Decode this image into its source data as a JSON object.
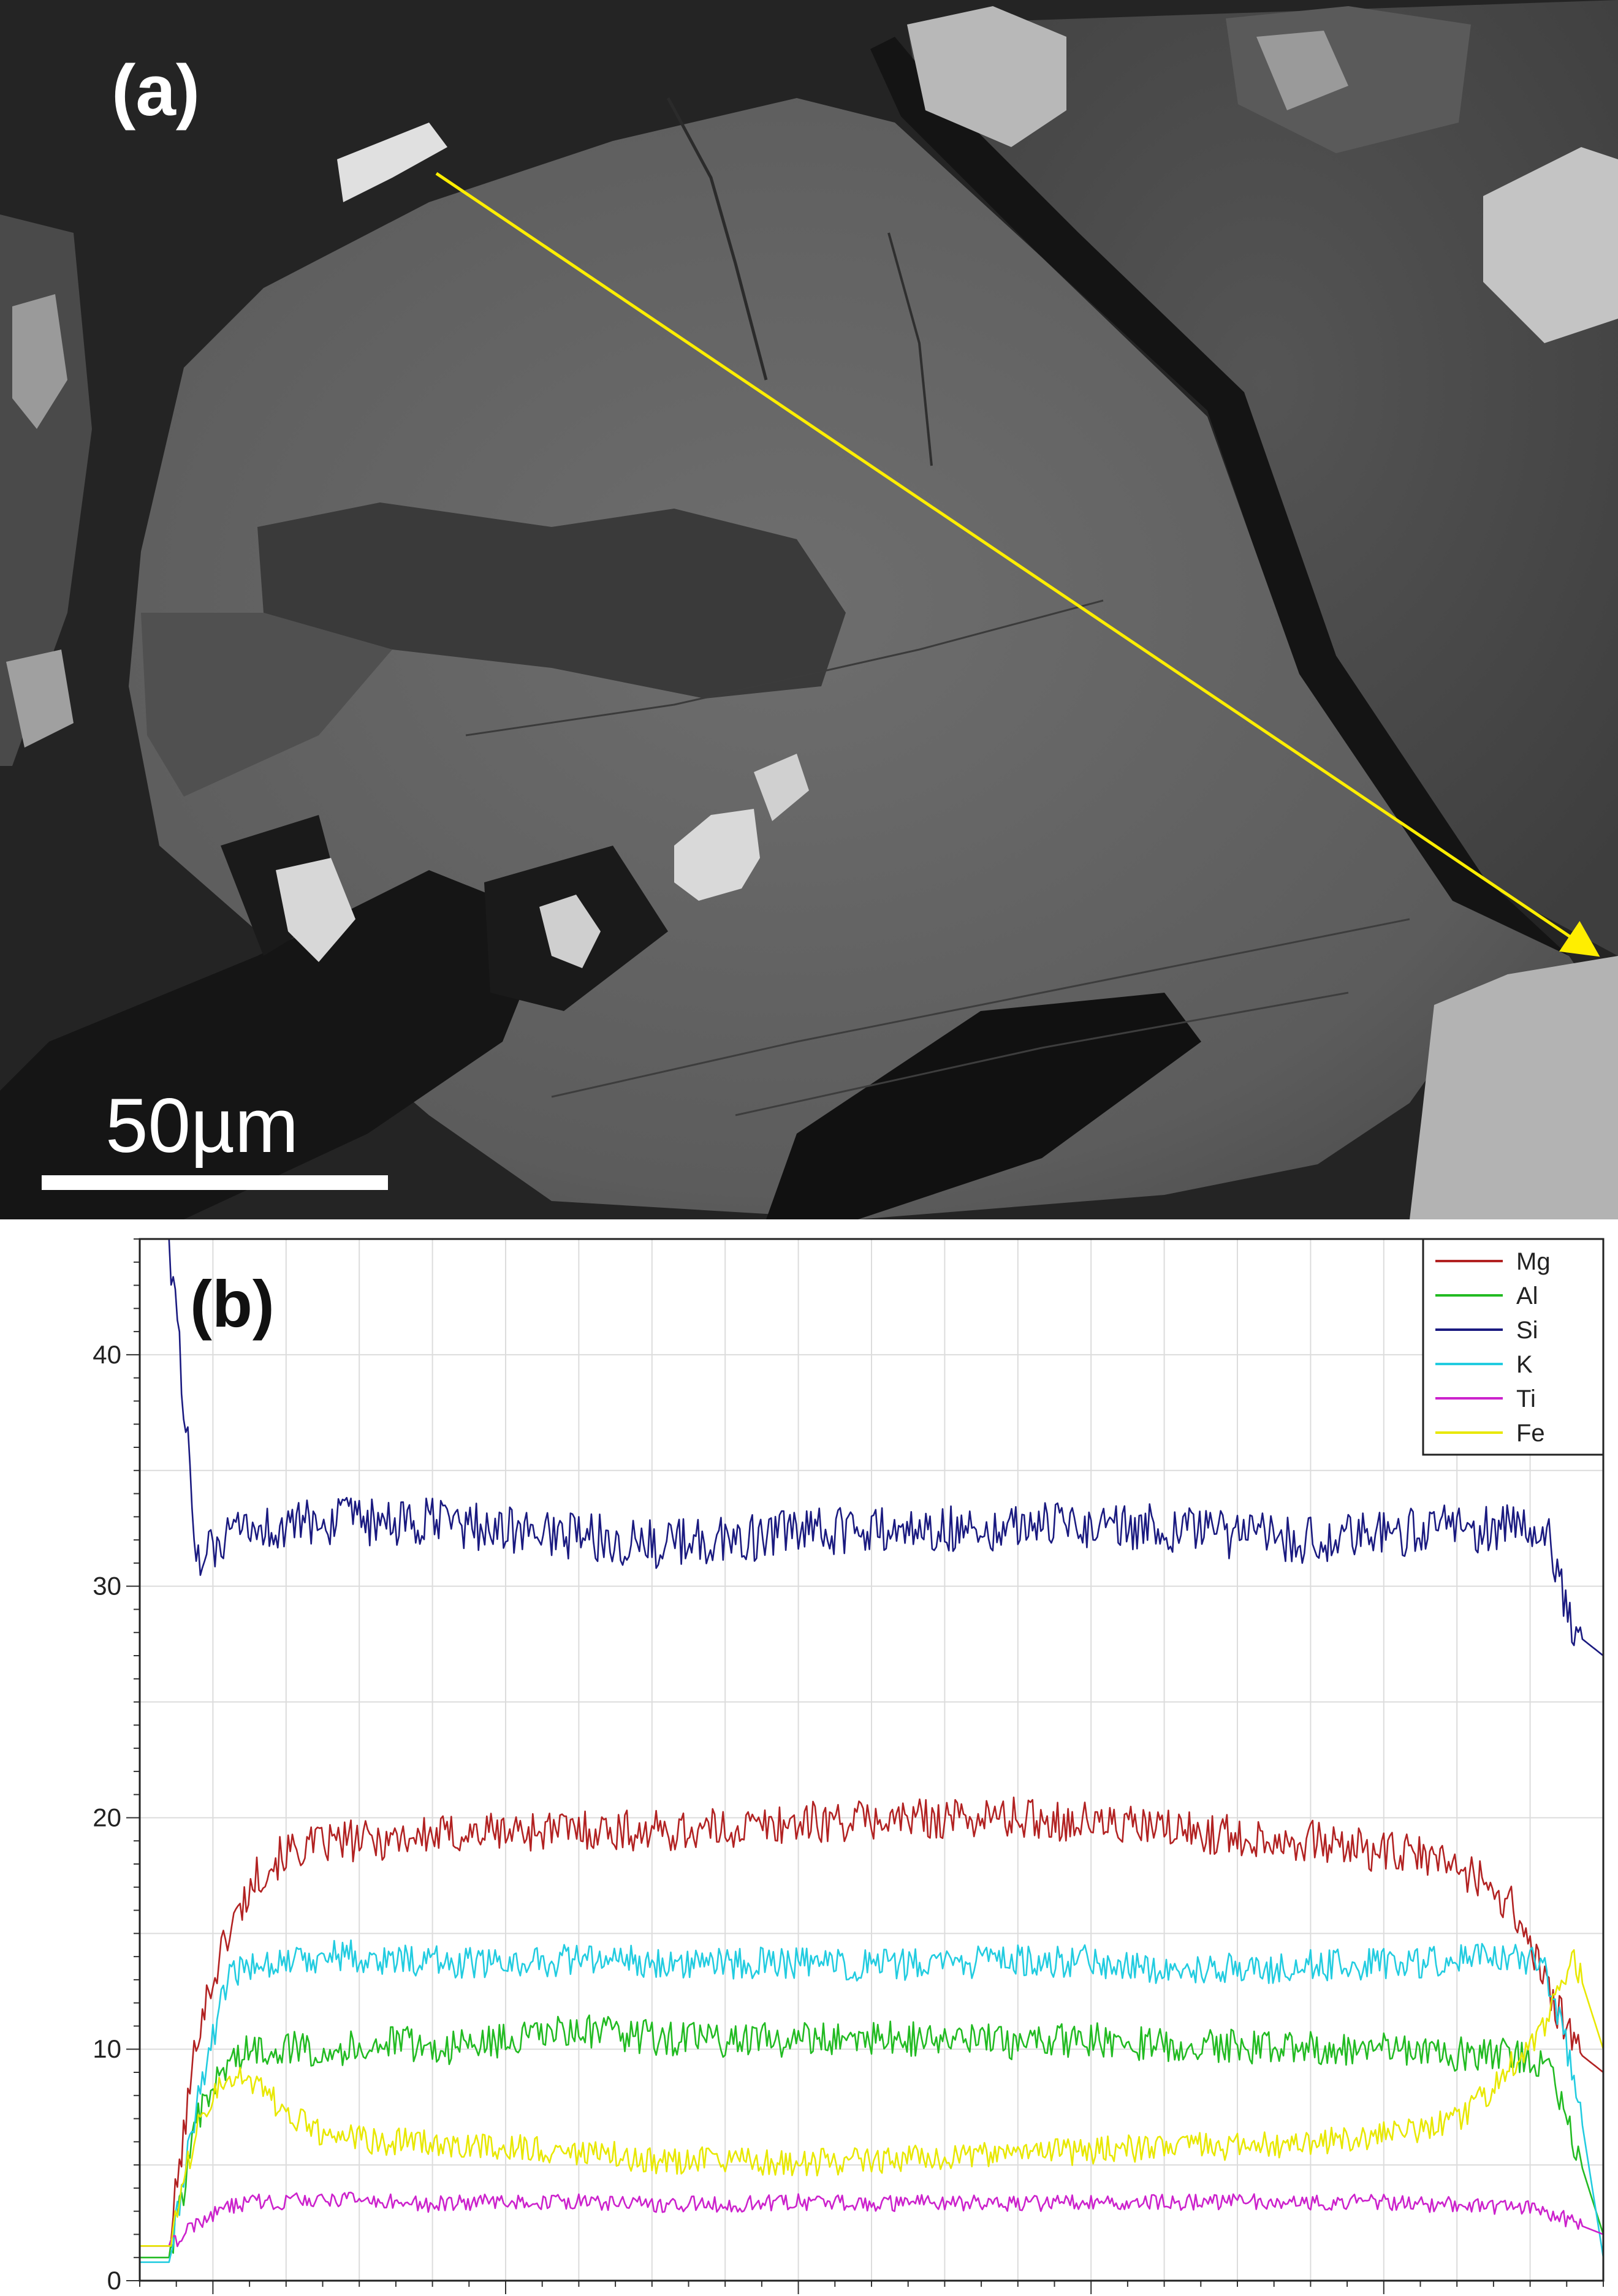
{
  "panel_a": {
    "label": "(a)",
    "scale_bar_label": "50µm",
    "arrow_color": "#ffee00"
  },
  "panel_b": {
    "label": "(b)"
  },
  "chart_data": {
    "type": "line",
    "x": [
      0,
      2,
      4,
      6,
      8,
      10,
      12,
      14,
      16,
      18,
      20,
      24,
      30,
      35,
      40,
      45,
      50,
      55,
      60,
      65,
      70,
      75,
      80,
      85,
      88,
      90,
      92,
      94,
      96,
      98,
      100
    ],
    "ylim": [
      0,
      45
    ],
    "xlim": [
      0,
      100
    ],
    "yticks": [
      "0",
      "10",
      "20",
      "30",
      "40"
    ],
    "grid": true,
    "legend_position": "top-right",
    "series": [
      {
        "name": "Mg",
        "color": "#b22222",
        "values": [
          1.5,
          1.5,
          11,
          15,
          17.5,
          18.5,
          18.8,
          19,
          19,
          19.2,
          19.2,
          19.4,
          19.5,
          19.4,
          19.5,
          19.8,
          19.9,
          20,
          20,
          19.8,
          19.5,
          19.2,
          19,
          18.5,
          18.3,
          17.9,
          17.2,
          16,
          13,
          10,
          9
        ]
      },
      {
        "name": "Al",
        "color": "#22bb22",
        "values": [
          1,
          1,
          7,
          9.5,
          10,
          10.1,
          10,
          10,
          10.2,
          10.3,
          10,
          10.3,
          10.8,
          10.5,
          10.4,
          10.4,
          10.5,
          10.4,
          10.3,
          10.4,
          10.2,
          10.1,
          10.1,
          10,
          9.9,
          9.8,
          9.8,
          9.7,
          9.5,
          6,
          2
        ]
      },
      {
        "name": "Si",
        "color": "#1a1a80",
        "values": [
          45,
          45,
          31,
          32,
          32.5,
          32.5,
          32.8,
          32.8,
          32.7,
          32.6,
          32.8,
          32.5,
          32.2,
          31.8,
          32,
          32.3,
          32.4,
          32.5,
          32.6,
          32.7,
          32.5,
          32.2,
          32,
          32.2,
          32.5,
          32.5,
          32.5,
          32.6,
          32.5,
          28,
          27
        ]
      },
      {
        "name": "K",
        "color": "#22cce0",
        "values": [
          0.8,
          0.8,
          8,
          13,
          13.8,
          13.8,
          14,
          14.1,
          13.8,
          13.9,
          13.8,
          13.7,
          13.9,
          13.8,
          13.7,
          13.7,
          13.6,
          13.7,
          13.8,
          13.8,
          13.5,
          13.5,
          13.6,
          13.7,
          13.8,
          13.8,
          13.9,
          14,
          13.5,
          9,
          1
        ]
      },
      {
        "name": "Ti",
        "color": "#cc22cc",
        "values": [
          1.5,
          1.5,
          2.5,
          3.2,
          3.4,
          3.4,
          3.5,
          3.5,
          3.4,
          3.4,
          3.3,
          3.4,
          3.4,
          3.3,
          3.3,
          3.4,
          3.3,
          3.4,
          3.3,
          3.4,
          3.4,
          3.4,
          3.4,
          3.4,
          3.3,
          3.3,
          3.2,
          3.2,
          3,
          2.5,
          2
        ]
      },
      {
        "name": "Fe",
        "color": "#e8e800",
        "values": [
          1.5,
          1.5,
          7,
          9,
          8.5,
          7.2,
          6.5,
          6.2,
          6,
          6,
          5.9,
          5.8,
          5.6,
          5.2,
          5.2,
          5.1,
          5.2,
          5.4,
          5.5,
          5.6,
          5.8,
          5.8,
          6,
          6.3,
          6.6,
          7,
          8,
          9.5,
          11,
          14,
          10
        ]
      }
    ]
  }
}
